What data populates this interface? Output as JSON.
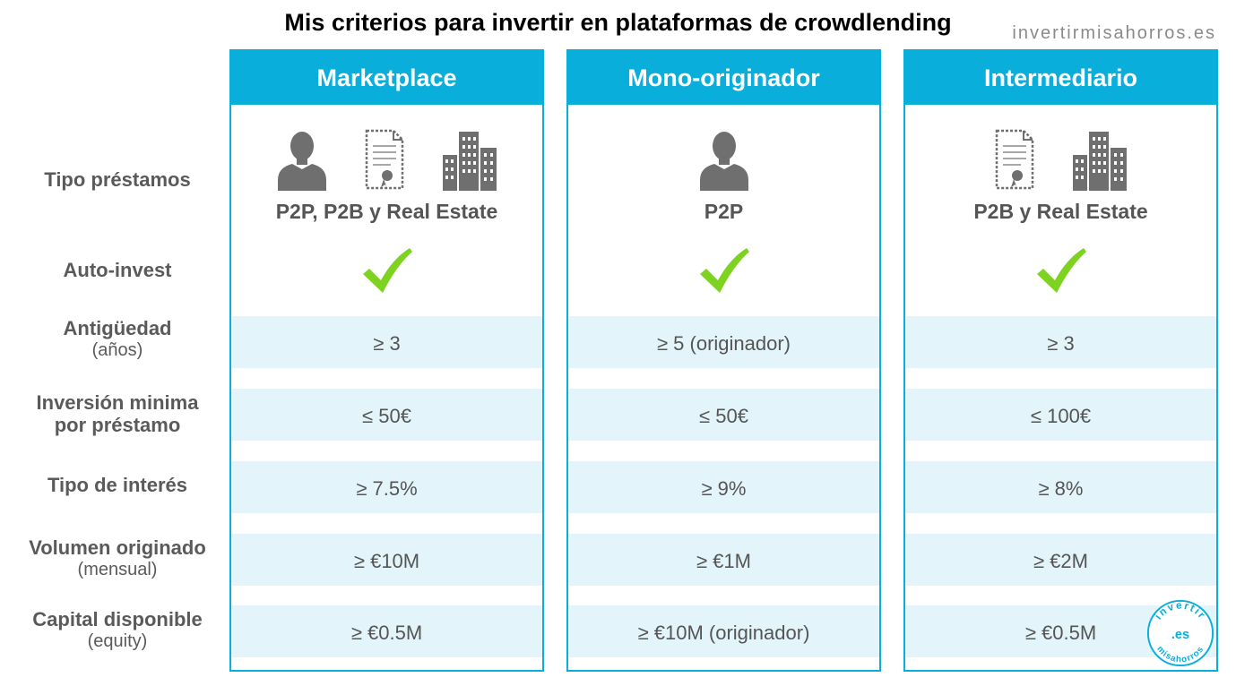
{
  "title": "Mis criterios para invertir en plataformas de crowdlending",
  "site": "invertirmisahorros.es",
  "row_labels": [
    {
      "main": "Tipo préstamos",
      "sub": ""
    },
    {
      "main": "Auto-invest",
      "sub": ""
    },
    {
      "main": "Antigüedad",
      "sub": "(años)"
    },
    {
      "main": "Inversión minima",
      "sub": "por préstamo"
    },
    {
      "main": "Tipo de interés",
      "sub": ""
    },
    {
      "main": "Volumen originado",
      "sub": "(mensual)"
    },
    {
      "main": "Capital disponible",
      "sub": "(equity)"
    }
  ],
  "columns": [
    {
      "header": "Marketplace",
      "icons": [
        "person-icon",
        "contract-icon",
        "buildings-icon"
      ],
      "types": "P2P, P2B y Real Estate",
      "auto_invest": true,
      "antiguedad": "≥ 3",
      "inversion_minima": "≤ 50€",
      "interes": "≥ 7.5%",
      "volumen": "≥ €10M",
      "capital": "≥ €0.5M"
    },
    {
      "header": "Mono-originador",
      "icons": [
        "person-icon"
      ],
      "types": "P2P",
      "auto_invest": true,
      "antiguedad": "≥ 5 (originador)",
      "inversion_minima": "≤ 50€",
      "interes": "≥ 9%",
      "volumen": "≥ €1M",
      "capital": "≥ €10M (originador)"
    },
    {
      "header": "Intermediario",
      "icons": [
        "contract-icon",
        "buildings-icon"
      ],
      "types": "P2B y Real Estate",
      "auto_invest": true,
      "antiguedad": "≥ 3",
      "inversion_minima": "≤ 100€",
      "interes": "≥ 8%",
      "volumen": "≥ €2M",
      "capital": "≥ €0.5M"
    }
  ],
  "badge": {
    "top": "invertir",
    "middle": ".es",
    "bottom": "misahorros"
  },
  "colors": {
    "accent": "#0aaedb",
    "band": "#e3f5fb",
    "check": "#7ed321",
    "text": "#555555",
    "icon": "#6f6f6f"
  }
}
